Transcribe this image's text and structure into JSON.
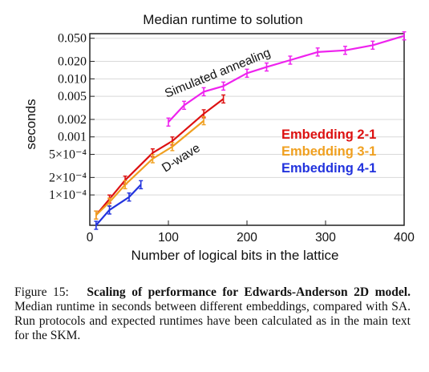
{
  "chart_data": {
    "type": "line",
    "title": "Median runtime to solution",
    "xlabel": "Number of logical bits in the lattice",
    "ylabel": "seconds",
    "xlim": [
      0,
      400
    ],
    "ylim": [
      3e-05,
      0.06
    ],
    "yscale": "log",
    "grid": "horizontal at y ticks",
    "x_ticks": [
      "0",
      "100",
      "200",
      "300",
      "400"
    ],
    "x_tick_values": [
      0,
      100,
      200,
      300,
      400
    ],
    "y_ticks": [
      "1×10⁻⁴",
      "2×10⁻⁴",
      "5×10⁻⁴",
      "0.001",
      "0.002",
      "0.005",
      "0.010",
      "0.020",
      "0.050"
    ],
    "y_tick_values": [
      0.0001,
      0.0002,
      0.0005,
      0.001,
      0.002,
      0.005,
      0.01,
      0.02,
      0.05
    ],
    "legend_position": "right-middle",
    "annotations": [
      {
        "text": "Simulated annealing",
        "series": "Simulated annealing"
      },
      {
        "text": "D-wave",
        "series": "Embedding 2-1"
      }
    ],
    "series": [
      {
        "name": "Simulated annealing",
        "color": "#ee22ee",
        "x": [
          100,
          120,
          145,
          170,
          200,
          225,
          255,
          290,
          325,
          360,
          400
        ],
        "y": [
          0.0018,
          0.0035,
          0.006,
          0.0075,
          0.0125,
          0.016,
          0.021,
          0.029,
          0.031,
          0.038,
          0.055
        ]
      },
      {
        "name": "Embedding 2-1",
        "color": "#dd1111",
        "x": [
          8,
          25,
          45,
          80,
          105,
          145,
          170
        ],
        "y": [
          4.5e-05,
          8.5e-05,
          0.00018,
          0.00053,
          0.00085,
          0.0025,
          0.0045
        ]
      },
      {
        "name": "Embedding 3-1",
        "color": "#f0a020",
        "x": [
          8,
          25,
          45,
          80,
          105,
          145
        ],
        "y": [
          4.5e-05,
          7.5e-05,
          0.00015,
          0.00042,
          0.00068,
          0.0019
        ]
      },
      {
        "name": "Embedding 4-1",
        "color": "#2233dd",
        "x": [
          8,
          25,
          50,
          65
        ],
        "y": [
          3e-05,
          5.5e-05,
          9.2e-05,
          0.00015
        ]
      }
    ]
  },
  "caption": {
    "label": "Figure 15:",
    "bold": "Scaling of performance for Edwards-Anderson 2D model.",
    "text": "Median runtime in seconds between different embeddings, compared with SA. Run protocols and expected runtimes have been calculated as in the main text for the SKM."
  }
}
